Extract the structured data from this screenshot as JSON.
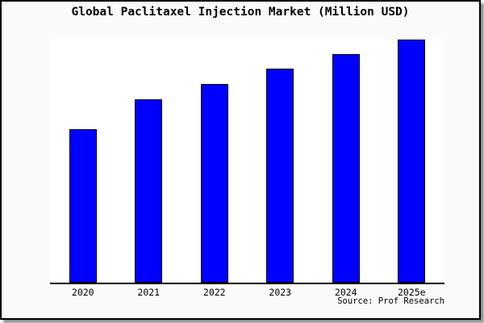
{
  "source_credit": "Source: Prof Research",
  "colors": {
    "bar_fill": "#0000ff",
    "bar_edge": "#000000",
    "figure_bg": "#fafafa",
    "plot_bg": "#ffffff",
    "axis": "#000000",
    "border": "#000000",
    "text": "#000000"
  },
  "chart_data": {
    "type": "bar",
    "title": "Global Paclitaxel Injection Market (Million USD)",
    "categories": [
      "2020",
      "2021",
      "2022",
      "2023",
      "2024",
      "2025e"
    ],
    "values": [
      63,
      75.5,
      81.7,
      88,
      94,
      100
    ],
    "xlabel": "",
    "ylabel": "",
    "ylim": [
      0,
      100.7
    ],
    "grid": false,
    "legend": null,
    "y_axis_ticks_shown": false,
    "note": "No y-axis scale or data labels are rendered in the image; values are relative bar heights expressed as percent of the tallest bar (2025e = 100)."
  }
}
